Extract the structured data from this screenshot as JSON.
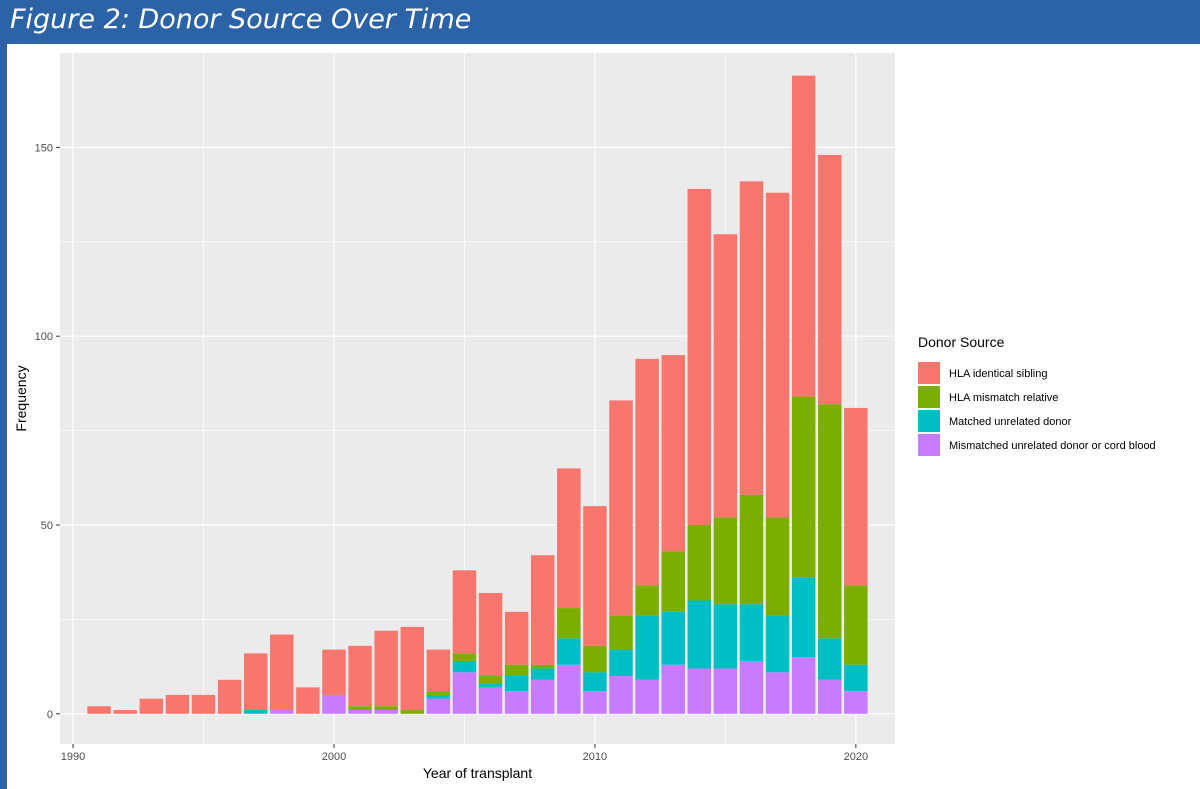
{
  "page": {
    "title": "Figure 2: Donor Source Over Time"
  },
  "chart_data": {
    "type": "bar",
    "stacked": true,
    "xlabel": "Year of transplant",
    "ylabel": "Frequency",
    "xlim": [
      1989.5,
      2021.5
    ],
    "ylim": [
      -8,
      175
    ],
    "x_ticks": [
      1990,
      2000,
      2010,
      2020
    ],
    "y_ticks": [
      0,
      50,
      100,
      150
    ],
    "x_minor": [
      1995,
      2005,
      2015
    ],
    "y_minor": [
      25,
      75,
      125
    ],
    "legend_title": "Donor Source",
    "legend_position": "right",
    "years": [
      1991,
      1992,
      1993,
      1994,
      1995,
      1996,
      1997,
      1998,
      1999,
      2000,
      2001,
      2002,
      2003,
      2004,
      2005,
      2006,
      2007,
      2008,
      2009,
      2010,
      2011,
      2012,
      2013,
      2014,
      2015,
      2016,
      2017,
      2018,
      2019,
      2020
    ],
    "series": [
      {
        "name": "Mismatched unrelated donor or cord blood",
        "color": "#C77CFF",
        "values": [
          0,
          0,
          0,
          0,
          0,
          0,
          0,
          1,
          0,
          5,
          1,
          1,
          0,
          4,
          11,
          7,
          6,
          9,
          13,
          6,
          10,
          9,
          13,
          12,
          12,
          14,
          11,
          15,
          9,
          6
        ]
      },
      {
        "name": "Matched unrelated donor",
        "color": "#00BFC4",
        "values": [
          0,
          0,
          0,
          0,
          0,
          0,
          1,
          0,
          0,
          0,
          0,
          0,
          0,
          1,
          3,
          1,
          4,
          3,
          7,
          5,
          7,
          17,
          14,
          18,
          17,
          15,
          15,
          21,
          11,
          7
        ]
      },
      {
        "name": "HLA mismatch relative",
        "color": "#7CAE00",
        "values": [
          0,
          0,
          0,
          0,
          0,
          0,
          0,
          0,
          0,
          0,
          1,
          1,
          1,
          1,
          2,
          2,
          3,
          1,
          8,
          7,
          9,
          8,
          16,
          20,
          23,
          29,
          26,
          48,
          62,
          21
        ]
      },
      {
        "name": "HLA identical sibling",
        "color": "#F8766D",
        "values": [
          2,
          1,
          4,
          5,
          5,
          9,
          15,
          20,
          7,
          12,
          16,
          20,
          22,
          11,
          22,
          22,
          14,
          29,
          37,
          37,
          57,
          60,
          52,
          89,
          75,
          83,
          86,
          85,
          66,
          47
        ]
      }
    ],
    "legend_order": [
      "HLA identical sibling",
      "HLA mismatch relative",
      "Matched unrelated donor",
      "Mismatched unrelated donor or cord blood"
    ]
  }
}
